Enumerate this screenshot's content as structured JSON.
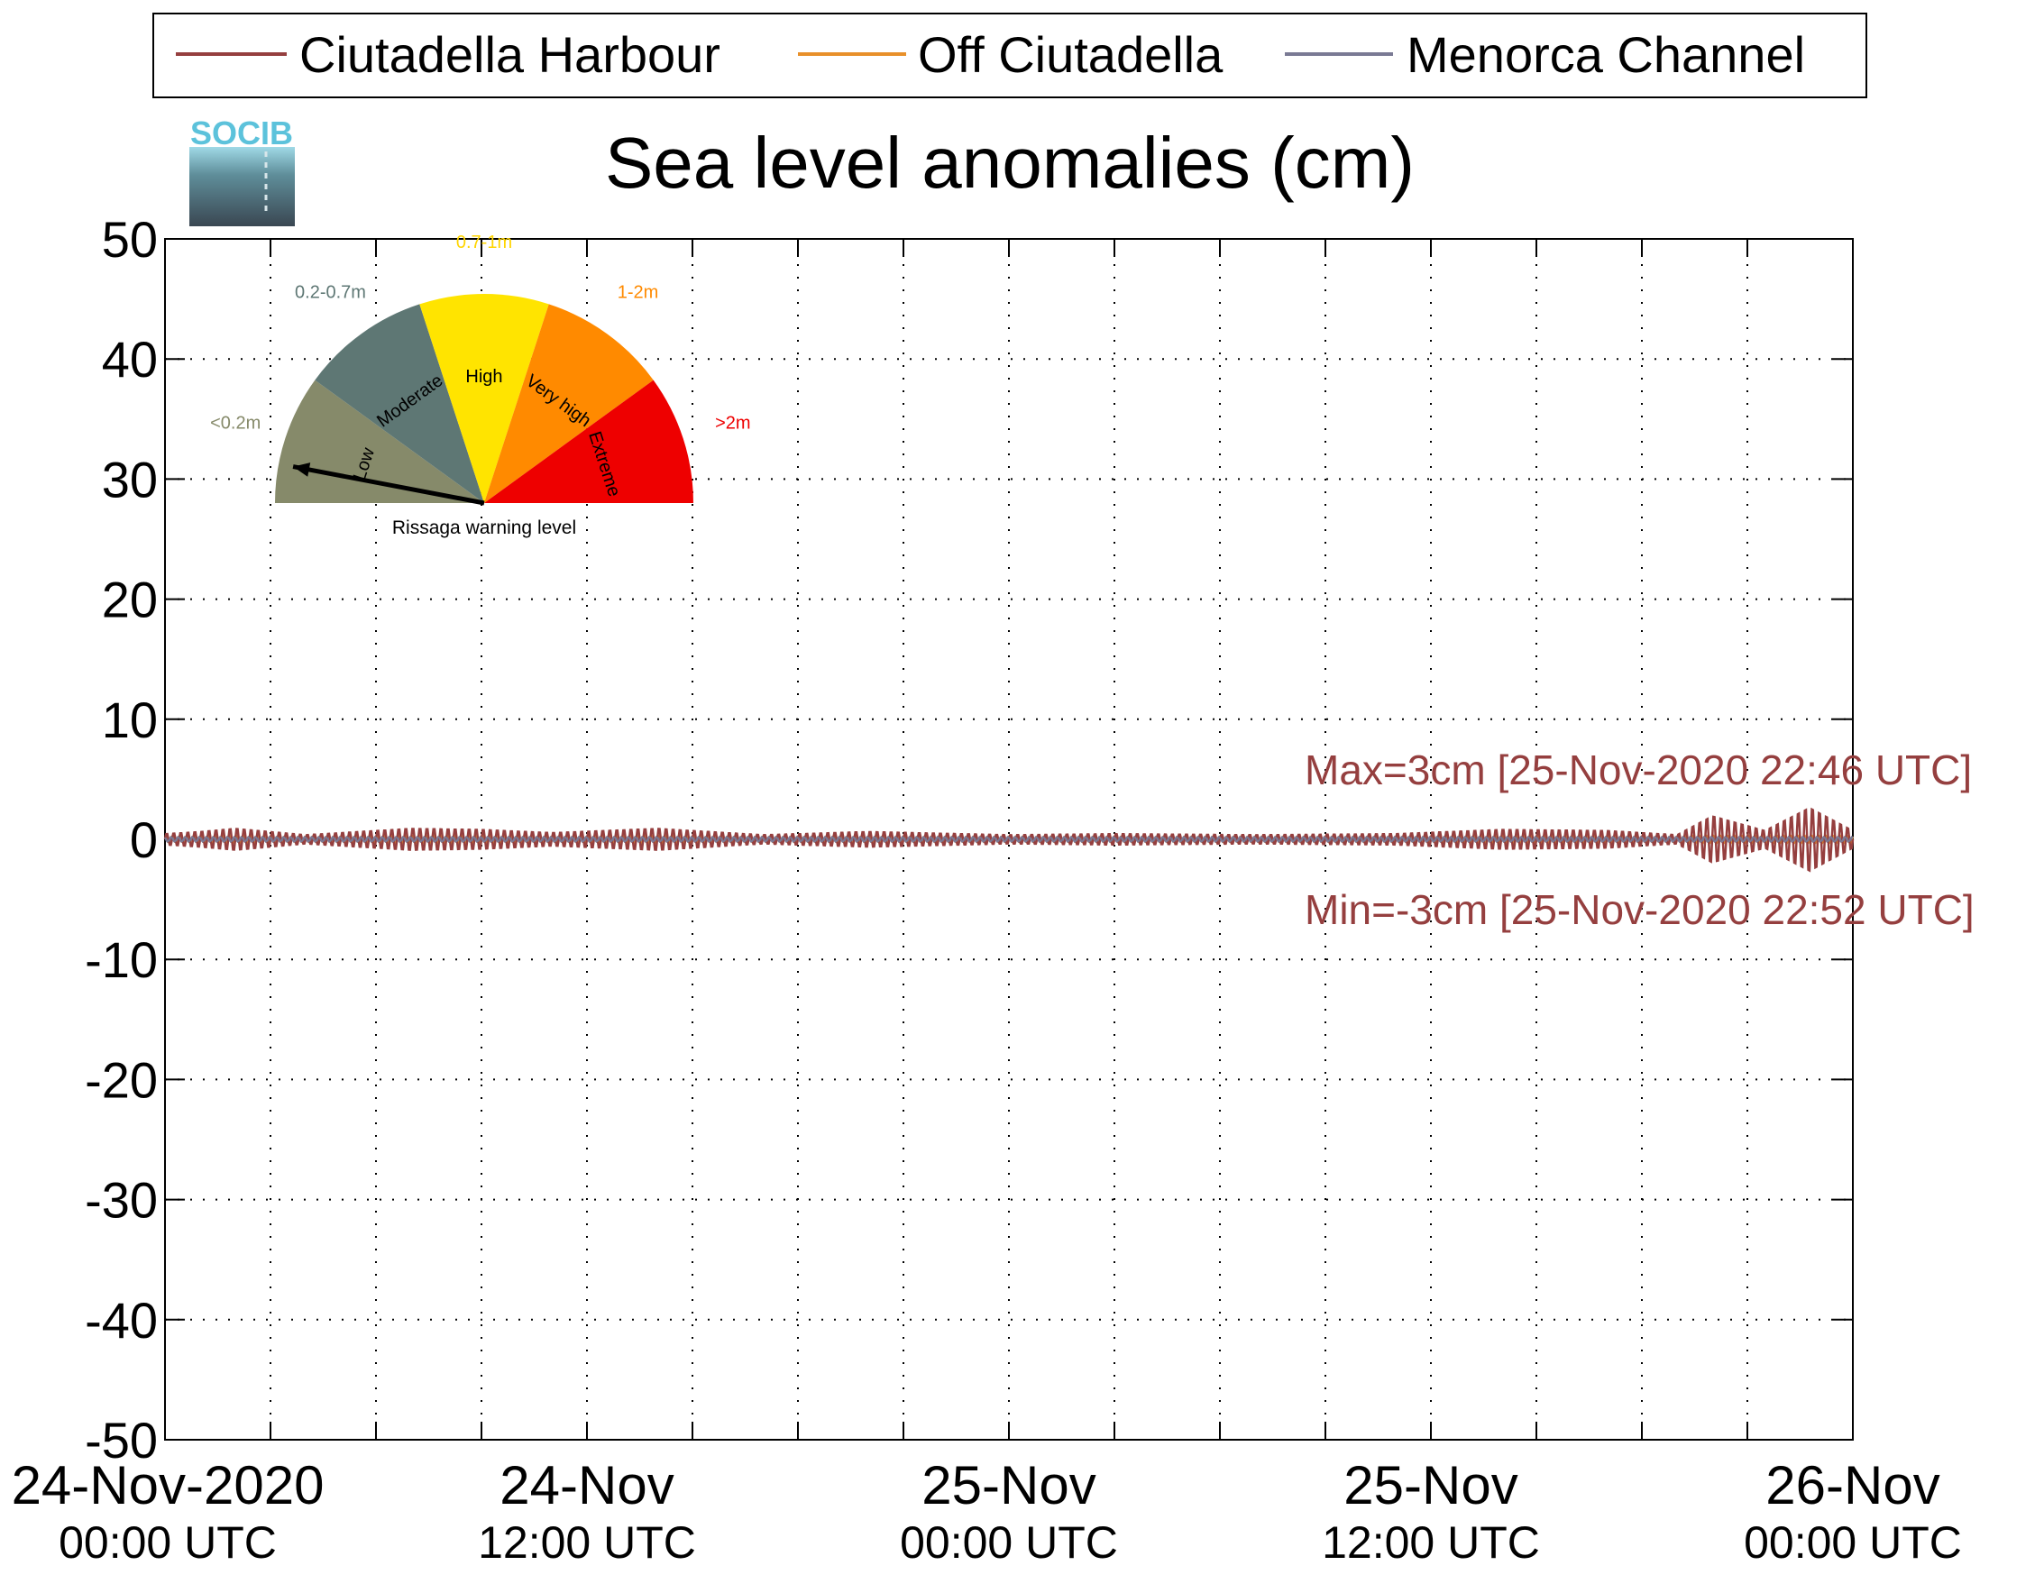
{
  "chart_data": {
    "type": "line",
    "title": "Sea level anomalies (cm)",
    "xlabel": "",
    "ylabel": "",
    "ylim": [
      -50,
      50
    ],
    "yticks": [
      50,
      40,
      30,
      20,
      10,
      0,
      -10,
      -20,
      -30,
      -40,
      -50
    ],
    "xlim": [
      "2020-11-24 00:00",
      "2020-11-26 00:00"
    ],
    "grid": true,
    "legend_position": "top",
    "xtick_labels": [
      {
        "date": "2020-11-24 00:00",
        "line1": "24-Nov-2020",
        "line2": "00:00 UTC"
      },
      {
        "date": "2020-11-24 12:00",
        "line1": "24-Nov",
        "line2": "12:00 UTC"
      },
      {
        "date": "2020-11-25 00:00",
        "line1": "25-Nov",
        "line2": "00:00 UTC"
      },
      {
        "date": "2020-11-25 12:00",
        "line1": "25-Nov",
        "line2": "12:00 UTC"
      },
      {
        "date": "2020-11-26 00:00",
        "line1": "26-Nov",
        "line2": "00:00 UTC"
      }
    ],
    "series": [
      {
        "name": "Ciutadella Harbour",
        "color": "#953f3f",
        "envelope": [
          {
            "x": "2020-11-24 00:00",
            "amp": 0.5
          },
          {
            "x": "2020-11-24 01:00",
            "amp": 0.7
          },
          {
            "x": "2020-11-24 02:00",
            "amp": 1.0
          },
          {
            "x": "2020-11-24 04:00",
            "amp": 0.4
          },
          {
            "x": "2020-11-24 07:00",
            "amp": 1.0
          },
          {
            "x": "2020-11-24 09:00",
            "amp": 0.9
          },
          {
            "x": "2020-11-24 11:00",
            "amp": 0.6
          },
          {
            "x": "2020-11-24 14:00",
            "amp": 1.0
          },
          {
            "x": "2020-11-24 17:00",
            "amp": 0.4
          },
          {
            "x": "2020-11-24 20:00",
            "amp": 0.7
          },
          {
            "x": "2020-11-25 00:00",
            "amp": 0.4
          },
          {
            "x": "2020-11-25 03:00",
            "amp": 0.5
          },
          {
            "x": "2020-11-25 07:00",
            "amp": 0.4
          },
          {
            "x": "2020-11-25 11:00",
            "amp": 0.5
          },
          {
            "x": "2020-11-25 14:00",
            "amp": 0.9
          },
          {
            "x": "2020-11-25 17:00",
            "amp": 0.8
          },
          {
            "x": "2020-11-25 19:00",
            "amp": 0.4
          },
          {
            "x": "2020-11-25 20:00",
            "amp": 2.2
          },
          {
            "x": "2020-11-25 21:30",
            "amp": 0.8
          },
          {
            "x": "2020-11-25 22:46",
            "amp": 3.0
          },
          {
            "x": "2020-11-26 00:00",
            "amp": 0.8
          }
        ]
      },
      {
        "name": "Off Ciutadella",
        "color": "#e8902a",
        "amp": 0.3
      },
      {
        "name": "Menorca Channel",
        "color": "#7a7a94",
        "amp": 0.2
      }
    ],
    "annotations": {
      "max": {
        "text": "Max=3cm [25-Nov-2020 22:46 UTC]",
        "value": 3,
        "date": "2020-11-25 22:46"
      },
      "min": {
        "text": "Min=-3cm [25-Nov-2020 22:52 UTC]",
        "value": -3,
        "date": "2020-11-25 22:52"
      }
    },
    "warning_gauge": {
      "caption": "Rissaga warning level",
      "needle_level": "Low",
      "sectors": [
        {
          "name": "Low",
          "range": "<0.2m",
          "color": "#868a6a",
          "label_color": "#868a6a"
        },
        {
          "name": "Moderate",
          "range": "0.2-0.7m",
          "color": "#5e7774",
          "label_color": "#5e7774"
        },
        {
          "name": "High",
          "range": "0.7-1m",
          "color": "#ffe400",
          "label_color": "#ffd500"
        },
        {
          "name": "Very high",
          "range": "1-2m",
          "color": "#ff8a00",
          "label_color": "#ff8a00"
        },
        {
          "name": "Extreme",
          "range": ">2m",
          "color": "#ee0000",
          "label_color": "#ee0000"
        }
      ]
    },
    "logo": {
      "text": "SOCIB",
      "color": "#5cc2db"
    }
  }
}
